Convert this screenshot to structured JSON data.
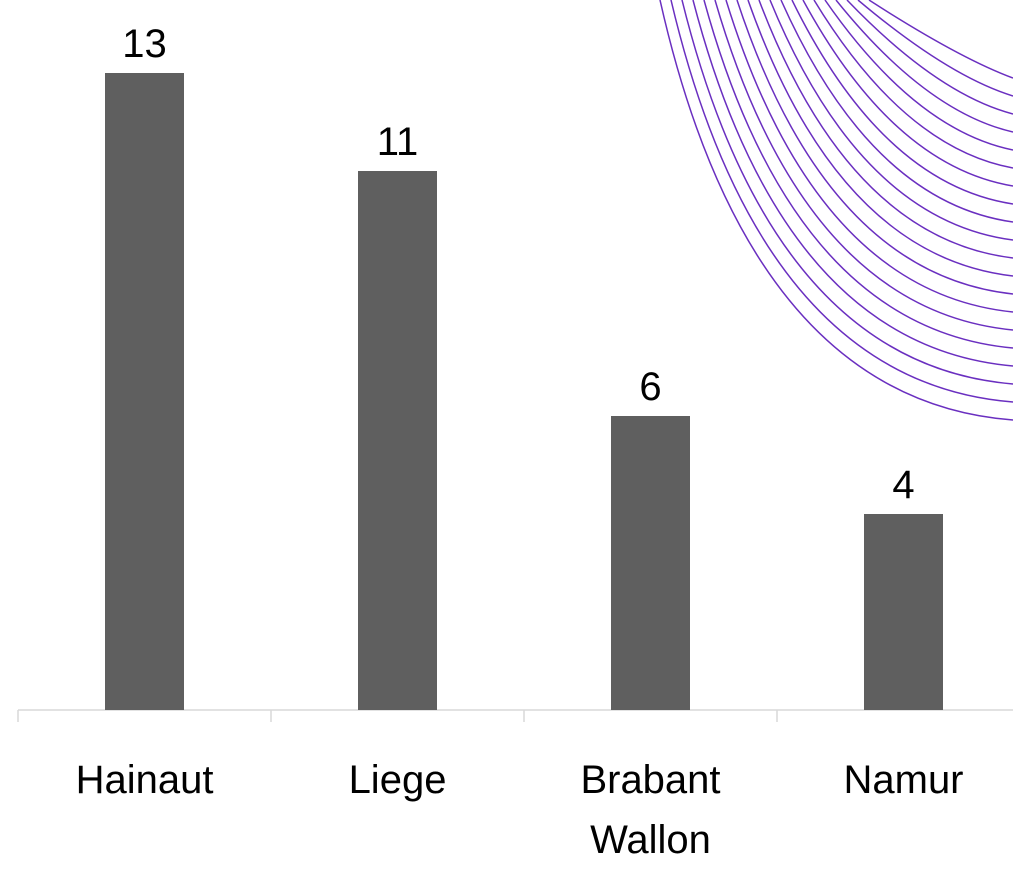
{
  "chart_data": {
    "type": "bar",
    "categories": [
      "Hainaut",
      "Liege",
      "Brabant Wallon",
      "Namur"
    ],
    "values": [
      13,
      11,
      6,
      4
    ],
    "color": "#5f5f5f"
  }
}
